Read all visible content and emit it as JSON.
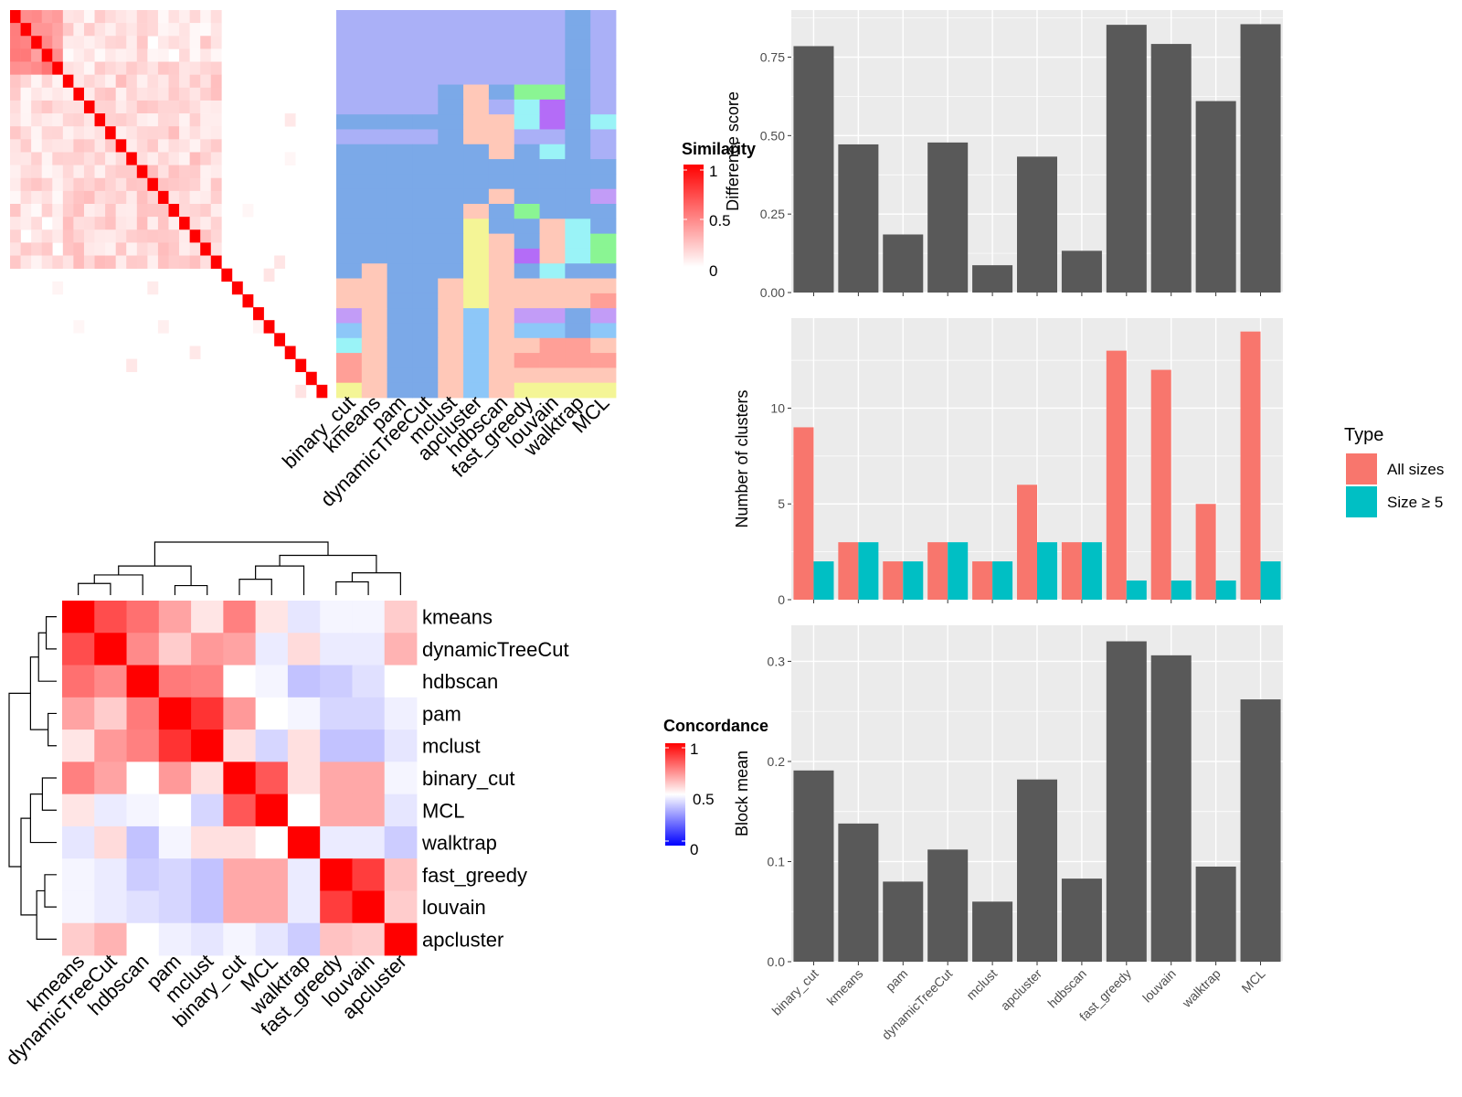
{
  "methods": [
    "binary_cut",
    "kmeans",
    "pam",
    "dynamicTreeCut",
    "mclust",
    "apcluster",
    "hdbscan",
    "fast_greedy",
    "louvain",
    "walktrap",
    "MCL"
  ],
  "colors": {
    "panel_bg": "#EBEBEB",
    "bar_fill": "#595959",
    "all_sizes": "#F8766D",
    "size_ge5": "#00BFC4",
    "sim_high": "#FF0000",
    "sim_low": "#FFFFFF",
    "conc_low": "#0000FF",
    "conc_mid": "#FFFFFF",
    "conc_high": "#FF0000"
  },
  "similarity_legend": {
    "title": "Similarity",
    "ticks": [
      "1",
      "0.5",
      "0"
    ]
  },
  "concordance_legend": {
    "title": "Concordance",
    "ticks": [
      "1",
      "0.5",
      "0"
    ]
  },
  "type_legend": {
    "title": "Type",
    "items": [
      "All sizes",
      "Size ≥ 5"
    ]
  },
  "similarity_matrix": {
    "n": 30,
    "noise_seed": 7
  },
  "cluster_assignment": {
    "columns": [
      "binary_cut",
      "kmeans",
      "pam",
      "dynamicTreeCut",
      "mclust",
      "apcluster",
      "hdbscan",
      "fast_greedy",
      "louvain",
      "walktrap",
      "MCL"
    ],
    "palette": [
      "#AAB0F7",
      "#7BA9E8",
      "#FFC8B8",
      "#F4F596",
      "#8AF593",
      "#9AF3F7",
      "#C29CF7",
      "#B46CF7",
      "#FF9F97",
      "#8DC7F8"
    ],
    "rows": [
      [
        0,
        0,
        0,
        0,
        0,
        0,
        0,
        0,
        0,
        1,
        0
      ],
      [
        0,
        0,
        0,
        0,
        0,
        0,
        0,
        0,
        0,
        1,
        0
      ],
      [
        0,
        0,
        0,
        0,
        0,
        0,
        0,
        0,
        0,
        1,
        0
      ],
      [
        0,
        0,
        0,
        0,
        0,
        0,
        0,
        0,
        0,
        1,
        0
      ],
      [
        0,
        0,
        0,
        0,
        0,
        0,
        0,
        0,
        0,
        1,
        0
      ],
      [
        0,
        0,
        0,
        0,
        1,
        2,
        1,
        4,
        4,
        1,
        0
      ],
      [
        0,
        0,
        0,
        0,
        1,
        2,
        0,
        5,
        7,
        1,
        0
      ],
      [
        1,
        1,
        1,
        1,
        1,
        2,
        2,
        5,
        7,
        1,
        5
      ],
      [
        0,
        0,
        0,
        0,
        1,
        2,
        2,
        0,
        0,
        1,
        0
      ],
      [
        1,
        1,
        1,
        1,
        1,
        1,
        2,
        1,
        5,
        1,
        0
      ],
      [
        1,
        1,
        1,
        1,
        1,
        1,
        1,
        1,
        1,
        1,
        1
      ],
      [
        1,
        1,
        1,
        1,
        1,
        1,
        1,
        1,
        1,
        1,
        1
      ],
      [
        1,
        1,
        1,
        1,
        1,
        1,
        2,
        1,
        1,
        1,
        6
      ],
      [
        1,
        1,
        1,
        1,
        1,
        2,
        1,
        4,
        1,
        1,
        1
      ],
      [
        1,
        1,
        1,
        1,
        1,
        3,
        1,
        1,
        2,
        5,
        1
      ],
      [
        1,
        1,
        1,
        1,
        1,
        3,
        2,
        1,
        2,
        5,
        4
      ],
      [
        1,
        1,
        1,
        1,
        1,
        3,
        2,
        7,
        2,
        5,
        4
      ],
      [
        1,
        2,
        1,
        1,
        1,
        3,
        2,
        1,
        5,
        1,
        1
      ],
      [
        2,
        2,
        1,
        1,
        2,
        3,
        2,
        2,
        2,
        2,
        2
      ],
      [
        2,
        2,
        1,
        1,
        2,
        3,
        2,
        2,
        2,
        2,
        8
      ],
      [
        6,
        2,
        1,
        1,
        2,
        9,
        2,
        6,
        6,
        1,
        6
      ],
      [
        9,
        2,
        1,
        1,
        2,
        9,
        2,
        9,
        9,
        1,
        9
      ],
      [
        5,
        2,
        1,
        1,
        2,
        9,
        2,
        2,
        8,
        8,
        2
      ],
      [
        8,
        2,
        1,
        1,
        2,
        9,
        2,
        8,
        8,
        8,
        8
      ],
      [
        8,
        2,
        1,
        1,
        2,
        9,
        2,
        2,
        2,
        2,
        2
      ],
      [
        3,
        2,
        1,
        1,
        2,
        9,
        2,
        3,
        3,
        3,
        3
      ]
    ]
  },
  "concordance": {
    "labels": [
      "kmeans",
      "dynamicTreeCut",
      "hdbscan",
      "pam",
      "mclust",
      "binary_cut",
      "MCL",
      "walktrap",
      "fast_greedy",
      "louvain",
      "apcluster"
    ],
    "matrix": [
      [
        1.0,
        0.85,
        0.78,
        0.68,
        0.55,
        0.75,
        0.55,
        0.45,
        0.48,
        0.48,
        0.6
      ],
      [
        0.85,
        1.0,
        0.73,
        0.6,
        0.7,
        0.68,
        0.46,
        0.57,
        0.46,
        0.46,
        0.65
      ],
      [
        0.78,
        0.73,
        1.0,
        0.76,
        0.75,
        0.5,
        0.48,
        0.38,
        0.4,
        0.44,
        0.5
      ],
      [
        0.68,
        0.6,
        0.76,
        1.0,
        0.9,
        0.7,
        0.5,
        0.48,
        0.42,
        0.42,
        0.47
      ],
      [
        0.55,
        0.7,
        0.75,
        0.9,
        1.0,
        0.56,
        0.42,
        0.56,
        0.38,
        0.38,
        0.45
      ],
      [
        0.75,
        0.68,
        0.5,
        0.7,
        0.56,
        1.0,
        0.83,
        0.56,
        0.67,
        0.67,
        0.48
      ],
      [
        0.55,
        0.46,
        0.48,
        0.5,
        0.42,
        0.83,
        1.0,
        0.5,
        0.67,
        0.67,
        0.45
      ],
      [
        0.45,
        0.57,
        0.38,
        0.48,
        0.56,
        0.56,
        0.5,
        1.0,
        0.46,
        0.46,
        0.4
      ],
      [
        0.48,
        0.46,
        0.4,
        0.42,
        0.38,
        0.67,
        0.67,
        0.46,
        1.0,
        0.88,
        0.62
      ],
      [
        0.48,
        0.46,
        0.44,
        0.42,
        0.38,
        0.67,
        0.67,
        0.46,
        0.88,
        1.0,
        0.6
      ],
      [
        0.6,
        0.65,
        0.5,
        0.47,
        0.45,
        0.48,
        0.45,
        0.4,
        0.62,
        0.6,
        1.0
      ]
    ]
  },
  "chart_data": [
    {
      "type": "bar",
      "title": "",
      "xlabel": "",
      "ylabel": "Difference score",
      "categories": [
        "binary_cut",
        "kmeans",
        "pam",
        "dynamicTreeCut",
        "mclust",
        "apcluster",
        "hdbscan",
        "fast_greedy",
        "louvain",
        "walktrap",
        "MCL"
      ],
      "values": [
        0.785,
        0.472,
        0.185,
        0.478,
        0.087,
        0.433,
        0.133,
        0.853,
        0.792,
        0.61,
        0.855
      ],
      "ylim": [
        0,
        0.9
      ],
      "yticks": [
        "0.00",
        "0.25",
        "0.50",
        "0.75"
      ],
      "grid": true
    },
    {
      "type": "bar",
      "title": "",
      "xlabel": "",
      "ylabel": "Number of clusters",
      "categories": [
        "binary_cut",
        "kmeans",
        "pam",
        "dynamicTreeCut",
        "mclust",
        "apcluster",
        "hdbscan",
        "fast_greedy",
        "louvain",
        "walktrap",
        "MCL"
      ],
      "series": [
        {
          "name": "All sizes",
          "values": [
            9,
            3,
            2,
            3,
            2,
            6,
            3,
            13,
            12,
            5,
            14
          ]
        },
        {
          "name": "Size ≥ 5",
          "values": [
            2,
            3,
            2,
            3,
            2,
            3,
            3,
            1,
            1,
            1,
            2
          ]
        }
      ],
      "ylim": [
        0,
        14.7
      ],
      "yticks": [
        "0",
        "5",
        "10"
      ],
      "legend": "right",
      "grid": true
    },
    {
      "type": "bar",
      "title": "",
      "xlabel": "",
      "ylabel": "Block mean",
      "categories": [
        "binary_cut",
        "kmeans",
        "pam",
        "dynamicTreeCut",
        "mclust",
        "apcluster",
        "hdbscan",
        "fast_greedy",
        "louvain",
        "walktrap",
        "MCL"
      ],
      "values": [
        0.191,
        0.138,
        0.08,
        0.112,
        0.06,
        0.182,
        0.083,
        0.32,
        0.306,
        0.095,
        0.262
      ],
      "ylim": [
        0,
        0.336
      ],
      "yticks": [
        "0.0",
        "0.1",
        "0.2",
        "0.3"
      ],
      "grid": true
    }
  ]
}
